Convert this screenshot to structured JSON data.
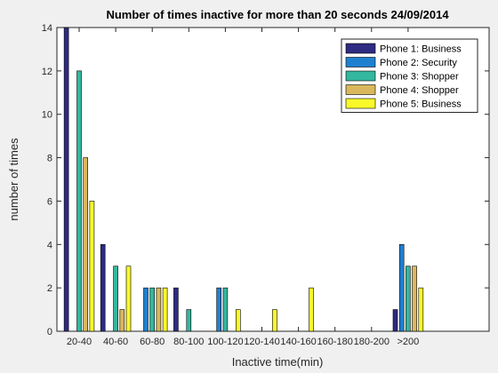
{
  "chart_data": {
    "type": "bar",
    "title": "Number of times inactive for more than 20 seconds 24/09/2014",
    "xlabel": "Inactive time(min)",
    "ylabel": "number of times",
    "ylim": [
      0,
      14
    ],
    "yticks": [
      0,
      2,
      4,
      6,
      8,
      10,
      12,
      14
    ],
    "categories": [
      "20-40",
      "40-60",
      "60-80",
      "80-100",
      "100-120",
      "120-140",
      "140-160",
      "160-180",
      "180-200",
      ">200"
    ],
    "series": [
      {
        "name": "Phone 1: Business",
        "color": "#2e2b82",
        "values": [
          14,
          4,
          0,
          2,
          0,
          0,
          0,
          0,
          0,
          1
        ]
      },
      {
        "name": "Phone 2: Security",
        "color": "#1f80d0",
        "values": [
          0,
          0,
          2,
          0,
          2,
          0,
          0,
          0,
          0,
          4
        ]
      },
      {
        "name": "Phone 3: Shopper",
        "color": "#34b79e",
        "values": [
          12,
          3,
          2,
          1,
          2,
          0,
          0,
          0,
          0,
          3
        ]
      },
      {
        "name": "Phone 4: Shopper",
        "color": "#d9b75c",
        "values": [
          8,
          1,
          2,
          0,
          0,
          0,
          0,
          0,
          0,
          3
        ]
      },
      {
        "name": "Phone 5: Business",
        "color": "#f9f92a",
        "values": [
          6,
          3,
          2,
          0,
          1,
          1,
          2,
          0,
          0,
          2
        ]
      }
    ],
    "legend_position": "top-right",
    "grid": false
  }
}
